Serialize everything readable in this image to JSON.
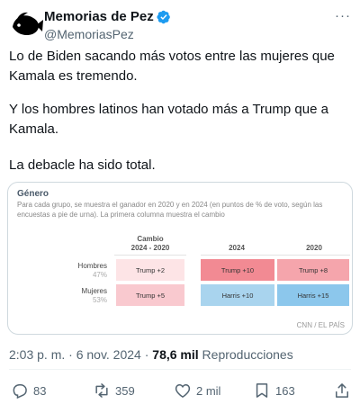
{
  "tweet": {
    "display_name": "Memorias de Pez",
    "handle": "@MemoriasPez",
    "more_label": "···",
    "paragraphs": [
      "Lo de Biden sacando más votos entre las mujeres que Kamala es tremendo.",
      "Y los hombres latinos han votado más a Trump que a Kamala.",
      "La debacle ha sido total."
    ]
  },
  "card": {
    "title": "Género",
    "description": "Para cada grupo, se muestra el ganador en 2020 y en 2024 (en puntos de % de voto, según las encuestas a pie de urna). La primera columna muestra el cambio",
    "columns": [
      "Cambio\n2024 - 2020",
      "2024",
      "2020"
    ],
    "rows": [
      {
        "label": "Hombres",
        "pct": "47%",
        "cells": [
          "Trump +2",
          "Trump +10",
          "Trump +8"
        ]
      },
      {
        "label": "Mujeres",
        "pct": "53%",
        "cells": [
          "Trump +5",
          "Harris +10",
          "Harris +15"
        ]
      }
    ],
    "colors": {
      "change_hombres": "#fde4e6",
      "change_mujeres": "#f9c9cf",
      "trump_strong": "#f28a93",
      "trump": "#f5a5ac",
      "harris": "#a9d4ee",
      "harris_strong": "#8cc7ec"
    },
    "source": "CNN / EL PAÍS"
  },
  "meta": {
    "time": "2:03 p. m. · 6 nov. 2024 · ",
    "views": "78,6 mil",
    "views_label": " Reproducciones"
  },
  "actions": {
    "replies": "83",
    "reposts": "359",
    "likes": "2 mil",
    "bookmarks": "163"
  },
  "accent": "#1d9bf0"
}
